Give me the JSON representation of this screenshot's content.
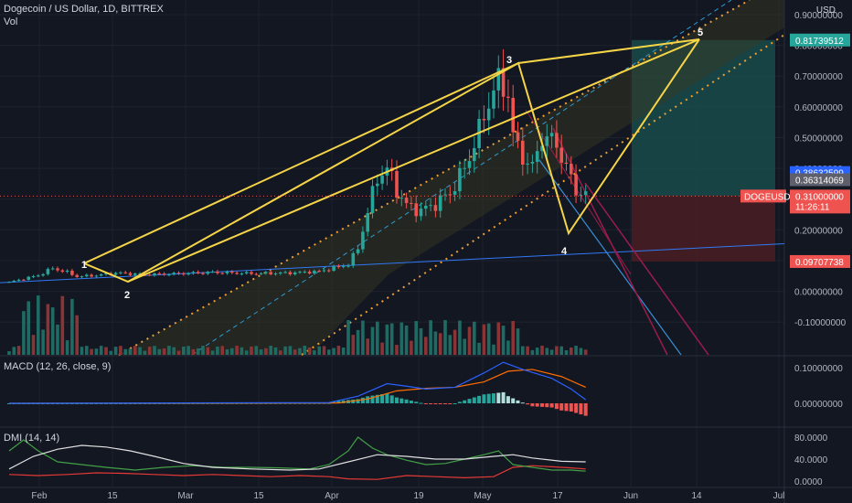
{
  "header": {
    "title": "Dogecoin / US Dollar, 1D, BITTREX",
    "vol_label": "Vol"
  },
  "axis_unit": "USD",
  "panes": {
    "macd_label": "MACD (12, 26, close, 9)",
    "dmi_label": "DMI (14, 14)"
  },
  "colors": {
    "background": "#131722",
    "grid": "#1e222d",
    "up": "#26a69a",
    "down": "#ef5350",
    "pattern": "#f5d547",
    "channel": "#f0a030",
    "trendline": "#3179f5",
    "macd_line": "#2962ff",
    "signal_line": "#ff6d00",
    "dmi_adx": "#e0e0e0",
    "dmi_plus": "#43a047",
    "dmi_minus": "#e53935",
    "target_zone": "#1a4b4b",
    "stop_zone": "#4a1d22"
  },
  "chart_data": [
    {
      "type": "candlestick",
      "title": "Dogecoin / US Dollar, 1D, BITTREX",
      "ylim": [
        -0.16,
        0.96
      ],
      "x_ticks": [
        "Feb",
        "15",
        "Mar",
        "15",
        "Apr",
        "19",
        "May",
        "17",
        "Jun",
        "14",
        "Jul"
      ],
      "y_ticks": [
        "0.90000000",
        "0.80000000",
        "0.70000000",
        "0.60000000",
        "0.50000000",
        "0.40000000",
        "0.30000000",
        "0.20000000",
        "0.10000000",
        "0.00000000",
        "-0.10000000"
      ],
      "price_labels": [
        {
          "value": 0.81739512,
          "text": "0.81739512",
          "color": "#26a69a"
        },
        {
          "value": 0.38632599,
          "text": "0.38632599",
          "color": "#2962ff"
        },
        {
          "value": 0.36314069,
          "text": "0.36314069",
          "color": "#5d606b"
        },
        {
          "value": 0.31,
          "text": "0.31000000",
          "color": "#ef5350",
          "tag": "DOGEUSD",
          "sub": "11:26:11"
        },
        {
          "value": 0.09707738,
          "text": "0.09707738",
          "color": "#ef5350"
        }
      ],
      "wave_labels": [
        "1",
        "2",
        "3",
        "4",
        "5"
      ],
      "close_path": [
        [
          0,
          0.03
        ],
        [
          6,
          0.052
        ],
        [
          9,
          0.075
        ],
        [
          12,
          0.062
        ],
        [
          14,
          0.048
        ],
        [
          18,
          0.052
        ],
        [
          22,
          0.06
        ],
        [
          28,
          0.055
        ],
        [
          34,
          0.057
        ],
        [
          42,
          0.062
        ],
        [
          50,
          0.058
        ],
        [
          58,
          0.06
        ],
        [
          64,
          0.065
        ],
        [
          70,
          0.088
        ],
        [
          72,
          0.14
        ],
        [
          74,
          0.26
        ],
        [
          76,
          0.37
        ],
        [
          78,
          0.4
        ],
        [
          80,
          0.33
        ],
        [
          82,
          0.28
        ],
        [
          85,
          0.262
        ],
        [
          88,
          0.285
        ],
        [
          91,
          0.32
        ],
        [
          94,
          0.4
        ],
        [
          97,
          0.52
        ],
        [
          99,
          0.62
        ],
        [
          101,
          0.68
        ],
        [
          103,
          0.65
        ],
        [
          104,
          0.5
        ],
        [
          106,
          0.44
        ],
        [
          108,
          0.4
        ],
        [
          110,
          0.505
        ],
        [
          113,
          0.48
        ],
        [
          115,
          0.4
        ],
        [
          117,
          0.33
        ],
        [
          119,
          0.31
        ]
      ],
      "macd": {
        "series": [
          "MACD",
          "Signal",
          "Histogram"
        ],
        "ylim": [
          -0.03,
          0.13
        ],
        "y_ticks": [
          "0.10000000",
          "0.00000000"
        ],
        "macd_path": [
          [
            0,
            0.0
          ],
          [
            66,
            0.002
          ],
          [
            72,
            0.02
          ],
          [
            78,
            0.055
          ],
          [
            82,
            0.048
          ],
          [
            86,
            0.04
          ],
          [
            92,
            0.045
          ],
          [
            98,
            0.085
          ],
          [
            102,
            0.115
          ],
          [
            106,
            0.095
          ],
          [
            112,
            0.07
          ],
          [
            116,
            0.04
          ],
          [
            119,
            0.01
          ]
        ],
        "signal_path": [
          [
            0,
            0.0
          ],
          [
            68,
            0.001
          ],
          [
            74,
            0.012
          ],
          [
            80,
            0.035
          ],
          [
            86,
            0.042
          ],
          [
            92,
            0.045
          ],
          [
            98,
            0.06
          ],
          [
            103,
            0.09
          ],
          [
            108,
            0.095
          ],
          [
            114,
            0.075
          ],
          [
            119,
            0.045
          ]
        ]
      },
      "dmi": {
        "series": [
          "ADX",
          "+DI",
          "-DI"
        ],
        "ylim": [
          -8,
          95
        ],
        "y_ticks": [
          "80.0000",
          "40.0000",
          "0.0000"
        ],
        "adx_path": [
          [
            0,
            22
          ],
          [
            5,
            45
          ],
          [
            10,
            58
          ],
          [
            15,
            65
          ],
          [
            20,
            62
          ],
          [
            25,
            55
          ],
          [
            30,
            45
          ],
          [
            36,
            32
          ],
          [
            42,
            25
          ],
          [
            50,
            22
          ],
          [
            58,
            20
          ],
          [
            64,
            22
          ],
          [
            70,
            35
          ],
          [
            76,
            48
          ],
          [
            82,
            45
          ],
          [
            88,
            40
          ],
          [
            94,
            40
          ],
          [
            100,
            45
          ],
          [
            104,
            48
          ],
          [
            108,
            42
          ],
          [
            114,
            36
          ],
          [
            119,
            35
          ]
        ],
        "plus_path": [
          [
            0,
            55
          ],
          [
            3,
            75
          ],
          [
            6,
            55
          ],
          [
            10,
            35
          ],
          [
            15,
            30
          ],
          [
            20,
            25
          ],
          [
            26,
            20
          ],
          [
            32,
            25
          ],
          [
            38,
            28
          ],
          [
            44,
            25
          ],
          [
            50,
            25
          ],
          [
            56,
            24
          ],
          [
            62,
            22
          ],
          [
            66,
            30
          ],
          [
            70,
            55
          ],
          [
            72,
            80
          ],
          [
            75,
            60
          ],
          [
            78,
            48
          ],
          [
            82,
            38
          ],
          [
            86,
            30
          ],
          [
            90,
            32
          ],
          [
            94,
            40
          ],
          [
            98,
            48
          ],
          [
            101,
            55
          ],
          [
            104,
            30
          ],
          [
            108,
            25
          ],
          [
            112,
            20
          ],
          [
            116,
            20
          ],
          [
            119,
            18
          ]
        ],
        "minus_path": [
          [
            0,
            12
          ],
          [
            6,
            10
          ],
          [
            12,
            12
          ],
          [
            18,
            15
          ],
          [
            24,
            14
          ],
          [
            30,
            12
          ],
          [
            36,
            10
          ],
          [
            42,
            12
          ],
          [
            48,
            10
          ],
          [
            54,
            8
          ],
          [
            60,
            10
          ],
          [
            66,
            8
          ],
          [
            70,
            4
          ],
          [
            76,
            3
          ],
          [
            82,
            10
          ],
          [
            88,
            8
          ],
          [
            94,
            6
          ],
          [
            100,
            8
          ],
          [
            104,
            25
          ],
          [
            108,
            28
          ],
          [
            112,
            26
          ],
          [
            116,
            24
          ],
          [
            119,
            22
          ]
        ]
      }
    }
  ]
}
